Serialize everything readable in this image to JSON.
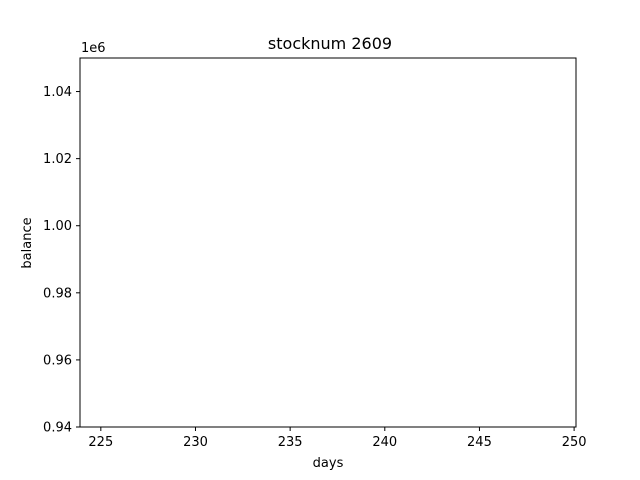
{
  "chart_data": {
    "type": "line",
    "title": "stocknum 2609",
    "xlabel": "days",
    "ylabel": "balance",
    "y_offset_label": "1e6",
    "xlim": [
      223.9,
      250.1
    ],
    "ylim": [
      0.94,
      1.05
    ],
    "x_ticks": [
      225,
      230,
      235,
      240,
      245,
      250
    ],
    "y_ticks": [
      0.94,
      0.96,
      0.98,
      1.0,
      1.02,
      1.04
    ],
    "x_tick_labels": [
      "225",
      "230",
      "235",
      "240",
      "245",
      "250"
    ],
    "y_tick_labels": [
      "0.94",
      "0.96",
      "0.98",
      "1.00",
      "1.02",
      "1.04"
    ],
    "grid": false,
    "series": []
  }
}
